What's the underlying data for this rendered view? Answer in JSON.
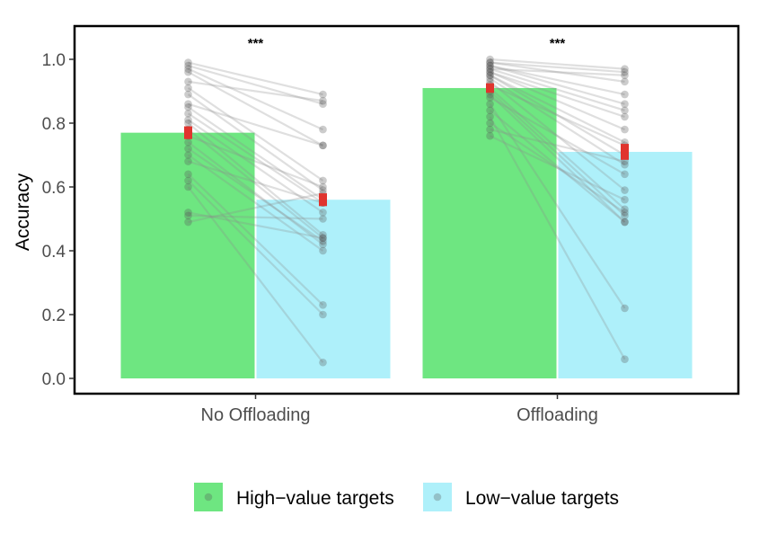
{
  "chart_data": {
    "type": "bar",
    "ylabel": "Accuracy",
    "xlabel": "",
    "ylim": [
      0,
      1.1
    ],
    "yticks": [
      "0.0",
      "0.2",
      "0.4",
      "0.6",
      "0.8",
      "1.0"
    ],
    "ytick_values": [
      0,
      0.2,
      0.4,
      0.6,
      0.8,
      1.0
    ],
    "categories": [
      "No Offloading",
      "Offloading"
    ],
    "series": [
      {
        "name": "High−value targets",
        "values": [
          0.77,
          0.91
        ],
        "sem": [
          0.02,
          0.015
        ],
        "color": "#6ee681"
      },
      {
        "name": "Low−value targets",
        "values": [
          0.56,
          0.71
        ],
        "sem": [
          0.02,
          0.025
        ],
        "color": "#aef0fa"
      }
    ],
    "significance": [
      "***",
      "***"
    ],
    "participants": [
      {
        "no_offloading": [
          0.99,
          0.89
        ],
        "offloading": [
          1.0,
          0.97
        ]
      },
      {
        "no_offloading": [
          0.98,
          0.86
        ],
        "offloading": [
          0.99,
          0.96
        ]
      },
      {
        "no_offloading": [
          0.97,
          0.78
        ],
        "offloading": [
          0.99,
          0.93
        ]
      },
      {
        "no_offloading": [
          0.96,
          0.73
        ],
        "offloading": [
          0.98,
          0.89
        ]
      },
      {
        "no_offloading": [
          0.93,
          0.87
        ],
        "offloading": [
          0.98,
          0.86
        ]
      },
      {
        "no_offloading": [
          0.91,
          0.62
        ],
        "offloading": [
          0.97,
          0.84
        ]
      },
      {
        "no_offloading": [
          0.89,
          0.59
        ],
        "offloading": [
          0.97,
          0.95
        ]
      },
      {
        "no_offloading": [
          0.86,
          0.73
        ],
        "offloading": [
          0.96,
          0.82
        ]
      },
      {
        "no_offloading": [
          0.85,
          0.56
        ],
        "offloading": [
          0.96,
          0.78
        ]
      },
      {
        "no_offloading": [
          0.83,
          0.55
        ],
        "offloading": [
          0.95,
          0.74
        ]
      },
      {
        "no_offloading": [
          0.81,
          0.52
        ],
        "offloading": [
          0.95,
          0.7
        ]
      },
      {
        "no_offloading": [
          0.8,
          0.45
        ],
        "offloading": [
          0.94,
          0.67
        ]
      },
      {
        "no_offloading": [
          0.78,
          0.44
        ],
        "offloading": [
          0.93,
          0.59
        ]
      },
      {
        "no_offloading": [
          0.76,
          0.6
        ],
        "offloading": [
          0.92,
          0.73
        ]
      },
      {
        "no_offloading": [
          0.74,
          0.42
        ],
        "offloading": [
          0.91,
          0.53
        ]
      },
      {
        "no_offloading": [
          0.72,
          0.43
        ],
        "offloading": [
          0.9,
          0.51
        ]
      },
      {
        "no_offloading": [
          0.7,
          0.4
        ],
        "offloading": [
          0.89,
          0.49
        ]
      },
      {
        "no_offloading": [
          0.68,
          0.55
        ],
        "offloading": [
          0.88,
          0.64
        ]
      },
      {
        "no_offloading": [
          0.64,
          0.23
        ],
        "offloading": [
          0.86,
          0.22
        ]
      },
      {
        "no_offloading": [
          0.62,
          0.2
        ],
        "offloading": [
          0.84,
          0.49
        ]
      },
      {
        "no_offloading": [
          0.6,
          0.05
        ],
        "offloading": [
          0.82,
          0.06
        ]
      },
      {
        "no_offloading": [
          0.52,
          0.44
        ],
        "offloading": [
          0.8,
          0.52
        ]
      },
      {
        "no_offloading": [
          0.51,
          0.5
        ],
        "offloading": [
          0.78,
          0.68
        ]
      },
      {
        "no_offloading": [
          0.49,
          0.58
        ],
        "offloading": [
          0.76,
          0.56
        ]
      }
    ],
    "legend_position": "bottom",
    "grid": false
  }
}
